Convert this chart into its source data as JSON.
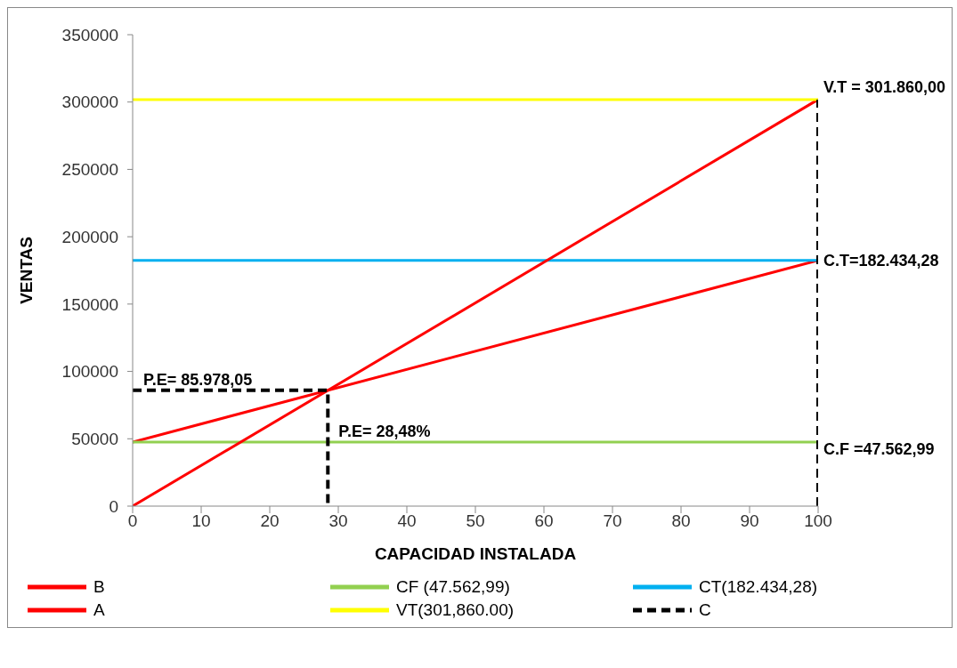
{
  "chart_data": {
    "type": "line",
    "xlabel": "CAPACIDAD INSTALADA",
    "ylabel": "VENTAS",
    "xlim": [
      0,
      100
    ],
    "xticks": [
      0,
      10,
      20,
      30,
      40,
      50,
      60,
      70,
      80,
      90,
      100
    ],
    "ylim": [
      0,
      350000
    ],
    "yticks": [
      0,
      50000,
      100000,
      150000,
      200000,
      250000,
      300000,
      350000
    ],
    "grid": false,
    "legend": "bottom",
    "marker": "none",
    "series": [
      {
        "name": "B",
        "color": "#ff0000",
        "x": [
          0,
          100
        ],
        "values": [
          47562.99,
          182434.28
        ]
      },
      {
        "name": "CF (47.562,99)",
        "color": "#92d050",
        "x": [
          0,
          100
        ],
        "values": [
          47562.99,
          47562.99
        ]
      },
      {
        "name": "CT(182.434,28)",
        "color": "#00b0f0",
        "x": [
          0,
          100
        ],
        "values": [
          182434.28,
          182434.28
        ]
      },
      {
        "name": "A",
        "color": "#ff0000",
        "x": [
          0,
          100
        ],
        "values": [
          0,
          301860
        ]
      },
      {
        "name": "VT(301,860.00)",
        "color": "#ffff00",
        "x": [
          0,
          100
        ],
        "values": [
          301860,
          301860
        ]
      },
      {
        "name": "C",
        "color": "#000000",
        "line_style": "dashed",
        "x": [
          0,
          28.48,
          28.48,
          null,
          100,
          100
        ],
        "values": [
          85978.05,
          85978.05,
          0,
          null,
          0,
          301860
        ]
      }
    ],
    "annotations": [
      {
        "text": "V.T = 301.860,00",
        "x": 100,
        "y": 301860
      },
      {
        "text": "C.T=182.434,28",
        "x": 100,
        "y": 182434.28
      },
      {
        "text": "C.F =47.562,99",
        "x": 100,
        "y": 47562.99
      },
      {
        "text": "P.E= 85.978,05",
        "x": 0,
        "y": 85978.05
      },
      {
        "text": "P.E= 28,48%",
        "x": 28.48,
        "y": 47562.99
      }
    ]
  }
}
